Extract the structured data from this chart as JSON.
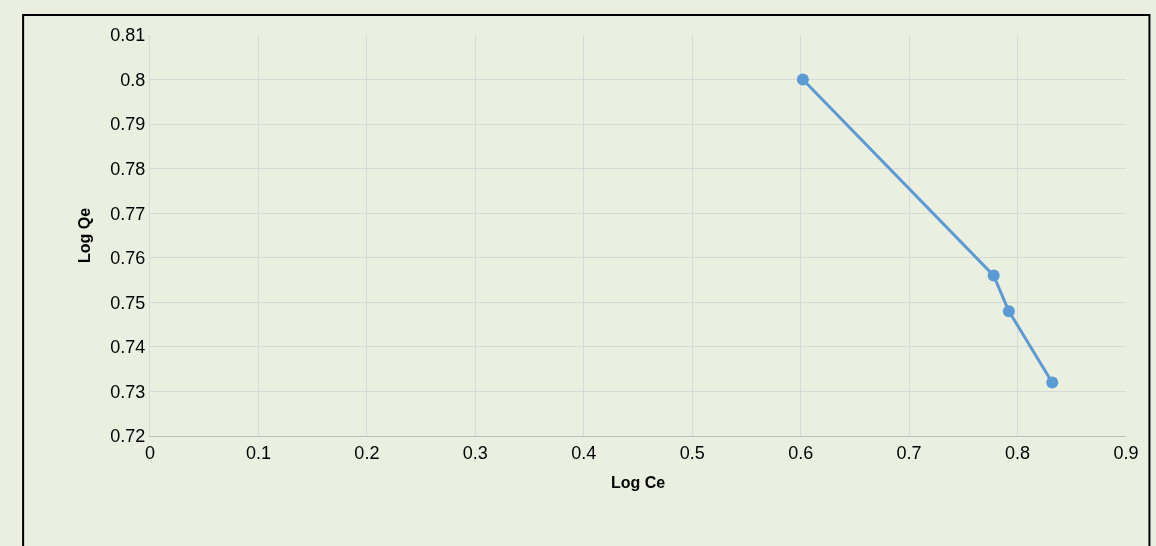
{
  "chart_data": {
    "type": "line",
    "xlabel": "Log Ce",
    "ylabel": "Log Qe",
    "x": [
      0.602,
      0.778,
      0.792,
      0.832
    ],
    "series": [
      {
        "color": "#5b9bd5",
        "values": [
          0.8,
          0.756,
          0.748,
          0.732
        ]
      }
    ],
    "xlim": [
      0,
      0.9
    ],
    "xticks": [
      0,
      0.1,
      0.2,
      0.3,
      0.4,
      0.5,
      0.6,
      0.7,
      0.8,
      0.9
    ],
    "ylim": [
      0.72,
      0.81
    ],
    "yticks": [
      0.72,
      0.73,
      0.74,
      0.75,
      0.76,
      0.77,
      0.78,
      0.79,
      0.8,
      0.81
    ],
    "grid": true,
    "marker": "circle",
    "line_style": "solid"
  }
}
